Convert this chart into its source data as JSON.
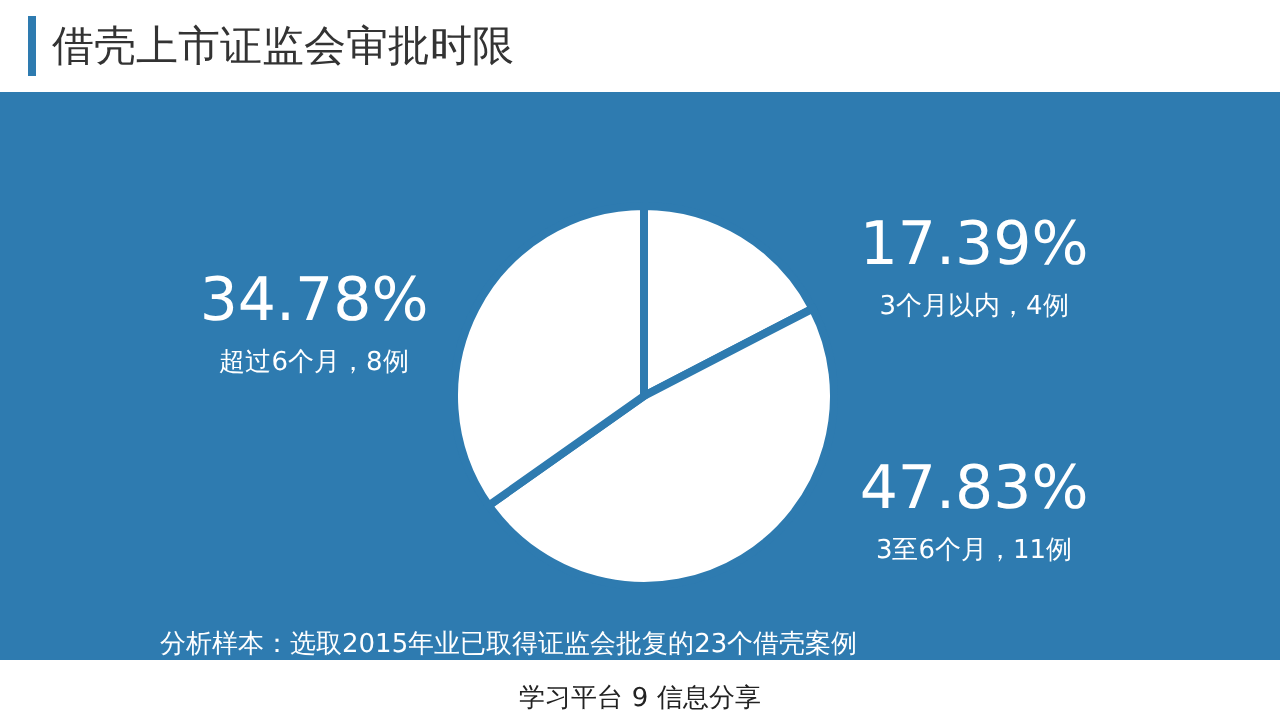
{
  "chart_data": {
    "type": "pie",
    "title": "借壳上市证监会审批时限",
    "categories": [
      "3个月以内，4例",
      "3至6个月，11例",
      "超过6个月，8例"
    ],
    "values": [
      17.39,
      47.83,
      34.78
    ],
    "value_labels": [
      "17.39%",
      "47.83%",
      "34.78%"
    ],
    "colors": [
      "#ffffff",
      "#ffffff",
      "#ffffff"
    ],
    "annotations": [
      "分析样本：选取2015年业已取得证监会批复的23个借壳案例",
      "学习平台 9 信息分享"
    ]
  }
}
